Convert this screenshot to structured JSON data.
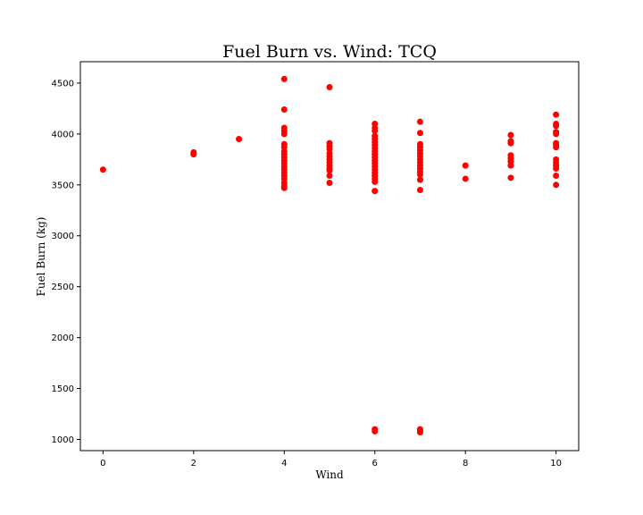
{
  "chart_data": {
    "type": "scatter",
    "title": "Fuel Burn vs. Wind: TCQ",
    "xlabel": "Wind",
    "ylabel": "Fuel Burn (kg)",
    "xlim": [
      -0.5,
      10.5
    ],
    "ylim": [
      890,
      4710
    ],
    "xticks": [
      0,
      2,
      4,
      6,
      8,
      10
    ],
    "yticks": [
      1000,
      1500,
      2000,
      2500,
      3000,
      3500,
      4000,
      4500
    ],
    "grid": false,
    "color": "#ff0000",
    "series": [
      {
        "points": [
          [
            0,
            3650
          ],
          [
            2,
            3800
          ],
          [
            2,
            3820
          ],
          [
            3,
            3950
          ],
          [
            4,
            4540
          ],
          [
            4,
            4240
          ],
          [
            4,
            4060
          ],
          [
            4,
            4030
          ],
          [
            4,
            4000
          ],
          [
            4,
            3900
          ],
          [
            4,
            3870
          ],
          [
            4,
            3830
          ],
          [
            4,
            3800
          ],
          [
            4,
            3770
          ],
          [
            4,
            3740
          ],
          [
            4,
            3710
          ],
          [
            4,
            3680
          ],
          [
            4,
            3650
          ],
          [
            4,
            3620
          ],
          [
            4,
            3590
          ],
          [
            4,
            3560
          ],
          [
            4,
            3520
          ],
          [
            4,
            3490
          ],
          [
            4,
            3470
          ],
          [
            5,
            4460
          ],
          [
            5,
            3910
          ],
          [
            5,
            3880
          ],
          [
            5,
            3850
          ],
          [
            5,
            3810
          ],
          [
            5,
            3780
          ],
          [
            5,
            3750
          ],
          [
            5,
            3720
          ],
          [
            5,
            3690
          ],
          [
            5,
            3660
          ],
          [
            5,
            3640
          ],
          [
            5,
            3590
          ],
          [
            5,
            3520
          ],
          [
            6,
            4100
          ],
          [
            6,
            4060
          ],
          [
            6,
            4030
          ],
          [
            6,
            3980
          ],
          [
            6,
            3950
          ],
          [
            6,
            3920
          ],
          [
            6,
            3890
          ],
          [
            6,
            3860
          ],
          [
            6,
            3830
          ],
          [
            6,
            3800
          ],
          [
            6,
            3770
          ],
          [
            6,
            3740
          ],
          [
            6,
            3710
          ],
          [
            6,
            3680
          ],
          [
            6,
            3650
          ],
          [
            6,
            3620
          ],
          [
            6,
            3590
          ],
          [
            6,
            3560
          ],
          [
            6,
            3530
          ],
          [
            6,
            3440
          ],
          [
            6,
            1100
          ],
          [
            6,
            1080
          ],
          [
            7,
            4120
          ],
          [
            7,
            4010
          ],
          [
            7,
            3900
          ],
          [
            7,
            3870
          ],
          [
            7,
            3840
          ],
          [
            7,
            3810
          ],
          [
            7,
            3780
          ],
          [
            7,
            3750
          ],
          [
            7,
            3720
          ],
          [
            7,
            3690
          ],
          [
            7,
            3660
          ],
          [
            7,
            3630
          ],
          [
            7,
            3600
          ],
          [
            7,
            3550
          ],
          [
            7,
            3450
          ],
          [
            7,
            1100
          ],
          [
            7,
            1080
          ],
          [
            7,
            1070
          ],
          [
            8,
            3690
          ],
          [
            8,
            3560
          ],
          [
            9,
            3990
          ],
          [
            9,
            3930
          ],
          [
            9,
            3910
          ],
          [
            9,
            3790
          ],
          [
            9,
            3760
          ],
          [
            9,
            3730
          ],
          [
            9,
            3690
          ],
          [
            9,
            3570
          ],
          [
            10,
            4190
          ],
          [
            10,
            4100
          ],
          [
            10,
            4080
          ],
          [
            10,
            4020
          ],
          [
            10,
            4000
          ],
          [
            10,
            3910
          ],
          [
            10,
            3890
          ],
          [
            10,
            3870
          ],
          [
            10,
            3750
          ],
          [
            10,
            3720
          ],
          [
            10,
            3690
          ],
          [
            10,
            3660
          ],
          [
            10,
            3590
          ],
          [
            10,
            3500
          ]
        ]
      }
    ]
  }
}
